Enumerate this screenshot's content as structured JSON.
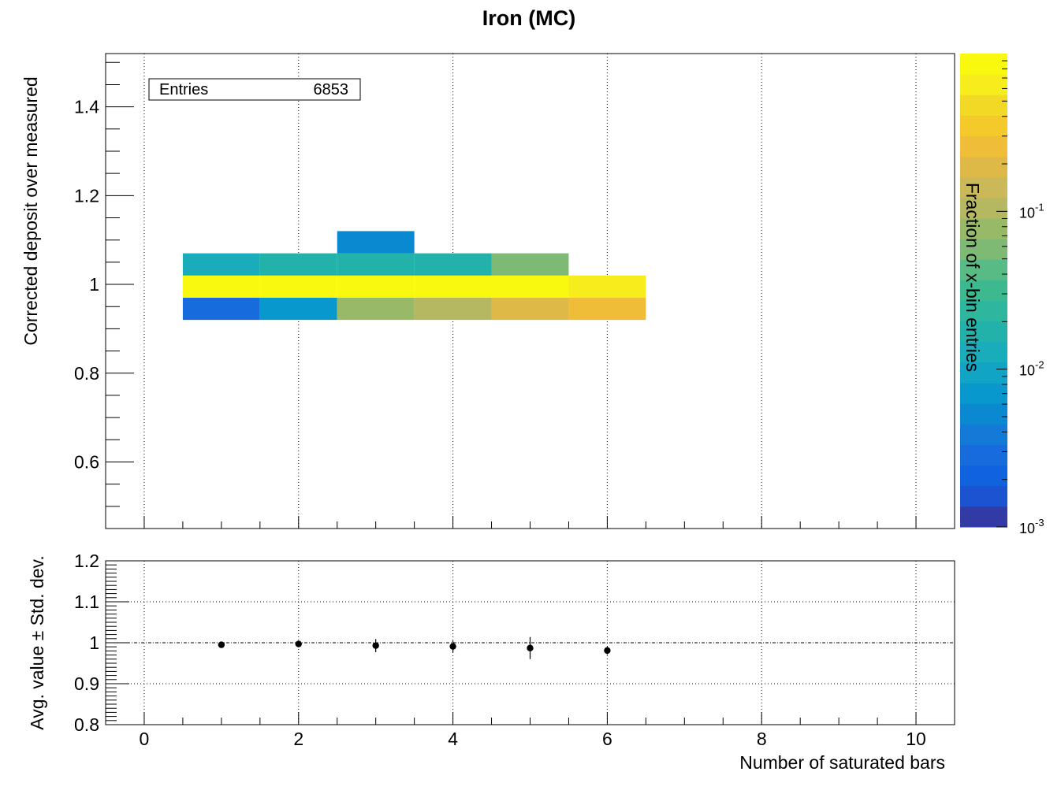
{
  "title": "Iron (MC)",
  "stats": {
    "label": "Entries",
    "value": "6853"
  },
  "colors": {
    "palette": [
      "#323ba5",
      "#1b53d1",
      "#1162de",
      "#186bdd",
      "#137ad8",
      "#0a89d1",
      "#0998ce",
      "#11a4c5",
      "#19acbb",
      "#22b2aa",
      "#2db79f",
      "#3db98f",
      "#58ba85",
      "#7eba73",
      "#98ba68",
      "#b5b860",
      "#cbb858",
      "#dfb948",
      "#f0bd39",
      "#f4c92a",
      "#f2d926",
      "#f7ec1c",
      "#f9f90f"
    ],
    "marker": "#000000"
  },
  "chart_data": [
    {
      "type": "heatmap",
      "title": "Iron (MC)",
      "xlabel": "Number of saturated bars",
      "ylabel": "Corrected deposit over measured",
      "zlabel": "Fraction of x-bin entries",
      "xlim": [
        -0.5,
        10.5
      ],
      "ylim": [
        0.45,
        1.52
      ],
      "zlim": [
        0.001,
        1
      ],
      "zscale": "log",
      "ztick_labels": [
        "10",
        "10",
        "10"
      ],
      "ztick_exponents": [
        "-1",
        "-2",
        "-3"
      ],
      "ztick_values": [
        0.1,
        0.01,
        0.001
      ],
      "xticks": [
        0,
        2,
        4,
        6,
        8,
        10
      ],
      "yticks": [
        0.6,
        0.8,
        1,
        1.2,
        1.4
      ],
      "ytick_labels": [
        "0.6",
        "0.8",
        "1",
        "1.2",
        "1.4"
      ],
      "grid": true,
      "cells": [
        {
          "x0": 0.5,
          "x1": 1.5,
          "y0": 0.92,
          "y1": 0.97,
          "z": 0.0025
        },
        {
          "x0": 0.5,
          "x1": 1.5,
          "y0": 0.97,
          "y1": 1.02,
          "z": 0.95
        },
        {
          "x0": 0.5,
          "x1": 1.5,
          "y0": 1.02,
          "y1": 1.07,
          "z": 0.012
        },
        {
          "x0": 1.5,
          "x1": 2.5,
          "y0": 0.92,
          "y1": 0.97,
          "z": 0.008
        },
        {
          "x0": 1.5,
          "x1": 2.5,
          "y0": 0.97,
          "y1": 1.02,
          "z": 0.95
        },
        {
          "x0": 1.5,
          "x1": 2.5,
          "y0": 1.02,
          "y1": 1.07,
          "z": 0.02
        },
        {
          "x0": 2.5,
          "x1": 3.5,
          "y0": 0.92,
          "y1": 0.97,
          "z": 0.07
        },
        {
          "x0": 2.5,
          "x1": 3.5,
          "y0": 0.97,
          "y1": 1.02,
          "z": 0.9
        },
        {
          "x0": 2.5,
          "x1": 3.5,
          "y0": 1.02,
          "y1": 1.07,
          "z": 0.02
        },
        {
          "x0": 2.5,
          "x1": 3.5,
          "y0": 1.07,
          "y1": 1.12,
          "z": 0.005
        },
        {
          "x0": 3.5,
          "x1": 4.5,
          "y0": 0.92,
          "y1": 0.97,
          "z": 0.12
        },
        {
          "x0": 3.5,
          "x1": 4.5,
          "y0": 0.97,
          "y1": 1.02,
          "z": 0.85
        },
        {
          "x0": 3.5,
          "x1": 4.5,
          "y0": 1.02,
          "y1": 1.07,
          "z": 0.02
        },
        {
          "x0": 4.5,
          "x1": 5.5,
          "y0": 0.92,
          "y1": 0.97,
          "z": 0.2
        },
        {
          "x0": 4.5,
          "x1": 5.5,
          "y0": 0.97,
          "y1": 1.02,
          "z": 0.75
        },
        {
          "x0": 4.5,
          "x1": 5.5,
          "y0": 1.02,
          "y1": 1.07,
          "z": 0.06
        },
        {
          "x0": 5.5,
          "x1": 6.5,
          "y0": 0.92,
          "y1": 0.97,
          "z": 0.3
        },
        {
          "x0": 5.5,
          "x1": 6.5,
          "y0": 0.97,
          "y1": 1.02,
          "z": 0.7
        }
      ]
    },
    {
      "type": "scatter",
      "xlabel": "Number of saturated bars",
      "ylabel": "Avg. value ± Std. dev.",
      "xlim": [
        -0.5,
        10.5
      ],
      "ylim": [
        0.8,
        1.2
      ],
      "xticks": [
        0,
        2,
        4,
        6,
        8,
        10
      ],
      "xtick_labels": [
        "0",
        "2",
        "4",
        "6",
        "8",
        "10"
      ],
      "yticks": [
        0.8,
        0.9,
        1,
        1.1,
        1.2
      ],
      "ytick_labels": [
        "0.8",
        "0.9",
        "1",
        "1.1",
        "1.2"
      ],
      "grid": true,
      "reference_line": 1,
      "points": [
        {
          "x": 1,
          "y": 0.995,
          "err": 0.004
        },
        {
          "x": 2,
          "y": 0.997,
          "err": 0.007
        },
        {
          "x": 3,
          "y": 0.993,
          "err": 0.016
        },
        {
          "x": 4,
          "y": 0.991,
          "err": 0.014
        },
        {
          "x": 5,
          "y": 0.987,
          "err": 0.027
        },
        {
          "x": 6,
          "y": 0.981,
          "err": 0.01
        }
      ]
    }
  ]
}
